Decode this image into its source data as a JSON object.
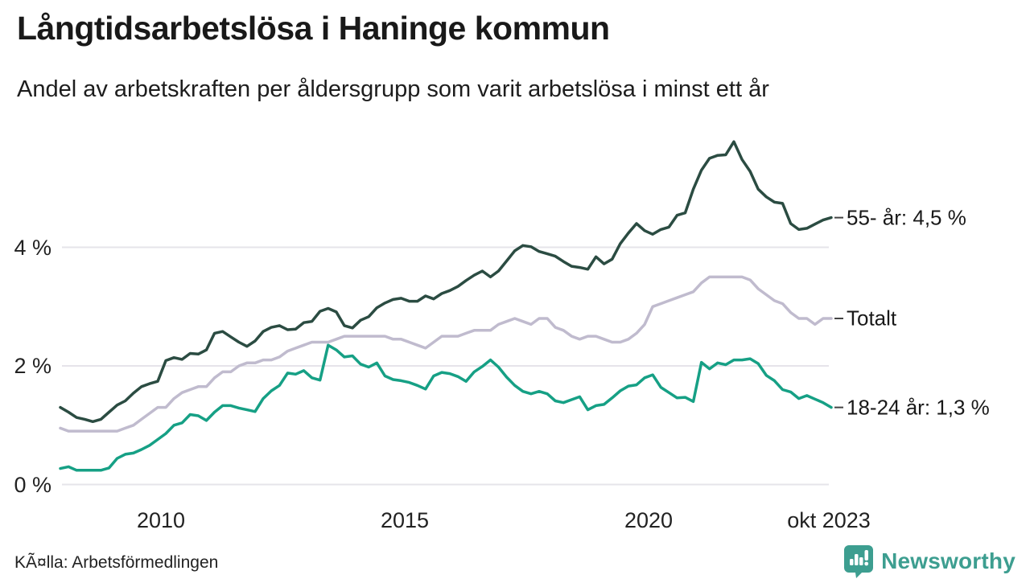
{
  "header": {
    "title": "Långtidsarbetslösa i Haninge kommun",
    "subtitle": "Andel av arbetskraften per åldersgrupp som varit arbetslösa i minst ett år"
  },
  "footer": {
    "source": "KÃ¤lla: Arbetsförmedlingen",
    "brand": "Newsworthy"
  },
  "colors": {
    "series_55": "#2b4c42",
    "series_total": "#c0bbce",
    "series_18_24": "#16a085",
    "gridline": "#e6e4ea",
    "tick_dash": "#444444",
    "text": "#191919",
    "logo_teal": "#3d9e90"
  },
  "chart_data": {
    "type": "line",
    "title": "Långtidsarbetslösa i Haninge kommun",
    "subtitle": "Andel av arbetskraften per åldersgrupp som varit arbetslösa i minst ett år",
    "unit": "% av arbetskraften",
    "x_range": [
      "jan 2008",
      "okt 2023"
    ],
    "ylim": [
      0,
      6
    ],
    "grid_values": [
      0,
      2,
      4
    ],
    "y_tick_labels": [
      "0 %",
      "2 %",
      "4 %"
    ],
    "x_tick_labels": [
      "2010",
      "2015",
      "2020",
      "okt 2023"
    ],
    "legend_position": "right-end-labels",
    "grid": "horizontal-only",
    "series": [
      {
        "name": "Totalt",
        "end_label": "Totalt",
        "latest_value": 2.8,
        "color": "#c0bbce",
        "values": [
          0.95,
          0.9,
          0.9,
          0.9,
          0.9,
          0.9,
          0.9,
          0.9,
          0.95,
          1.0,
          1.1,
          1.2,
          1.3,
          1.3,
          1.45,
          1.55,
          1.6,
          1.65,
          1.65,
          1.8,
          1.9,
          1.9,
          2.0,
          2.05,
          2.05,
          2.1,
          2.1,
          2.15,
          2.25,
          2.3,
          2.35,
          2.4,
          2.4,
          2.4,
          2.45,
          2.5,
          2.5,
          2.5,
          2.5,
          2.5,
          2.5,
          2.45,
          2.45,
          2.4,
          2.35,
          2.3,
          2.4,
          2.5,
          2.5,
          2.5,
          2.55,
          2.6,
          2.6,
          2.6,
          2.7,
          2.75,
          2.8,
          2.75,
          2.7,
          2.8,
          2.8,
          2.65,
          2.6,
          2.5,
          2.45,
          2.5,
          2.5,
          2.45,
          2.4,
          2.4,
          2.45,
          2.55,
          2.7,
          3.0,
          3.05,
          3.1,
          3.15,
          3.2,
          3.25,
          3.4,
          3.5,
          3.5,
          3.5,
          3.5,
          3.5,
          3.45,
          3.3,
          3.2,
          3.1,
          3.05,
          2.9,
          2.8,
          2.8,
          2.7,
          2.8,
          2.8
        ]
      },
      {
        "name": "18-24 år",
        "end_label": "18-24 år: 1,3 %",
        "latest_value": 1.3,
        "color": "#16a085",
        "values": [
          0.27,
          0.3,
          0.24,
          0.24,
          0.24,
          0.24,
          0.28,
          0.44,
          0.51,
          0.53,
          0.59,
          0.66,
          0.76,
          0.86,
          1.0,
          1.04,
          1.18,
          1.16,
          1.08,
          1.22,
          1.33,
          1.33,
          1.29,
          1.26,
          1.23,
          1.45,
          1.58,
          1.67,
          1.88,
          1.86,
          1.92,
          1.8,
          1.76,
          2.35,
          2.27,
          2.15,
          2.17,
          2.03,
          1.98,
          2.05,
          1.83,
          1.77,
          1.75,
          1.72,
          1.67,
          1.61,
          1.83,
          1.89,
          1.87,
          1.82,
          1.74,
          1.9,
          1.99,
          2.1,
          1.98,
          1.81,
          1.67,
          1.57,
          1.53,
          1.57,
          1.53,
          1.41,
          1.38,
          1.43,
          1.48,
          1.26,
          1.33,
          1.35,
          1.46,
          1.58,
          1.66,
          1.68,
          1.8,
          1.85,
          1.64,
          1.55,
          1.46,
          1.47,
          1.4,
          2.06,
          1.95,
          2.05,
          2.02,
          2.1,
          2.1,
          2.12,
          2.04,
          1.84,
          1.75,
          1.6,
          1.56,
          1.45,
          1.5,
          1.44,
          1.38,
          1.3
        ]
      },
      {
        "name": "55- år",
        "end_label": "55- år: 4,5 %",
        "latest_value": 4.5,
        "color": "#2b4c42",
        "values": [
          1.3,
          1.22,
          1.13,
          1.1,
          1.06,
          1.1,
          1.22,
          1.34,
          1.41,
          1.54,
          1.65,
          1.7,
          1.74,
          2.09,
          2.14,
          2.11,
          2.21,
          2.2,
          2.27,
          2.55,
          2.58,
          2.49,
          2.4,
          2.33,
          2.42,
          2.58,
          2.65,
          2.68,
          2.61,
          2.62,
          2.73,
          2.75,
          2.92,
          2.97,
          2.91,
          2.68,
          2.64,
          2.77,
          2.83,
          2.98,
          3.06,
          3.12,
          3.14,
          3.09,
          3.09,
          3.18,
          3.13,
          3.22,
          3.27,
          3.34,
          3.44,
          3.53,
          3.6,
          3.5,
          3.6,
          3.77,
          3.94,
          4.03,
          4.01,
          3.93,
          3.89,
          3.85,
          3.76,
          3.68,
          3.66,
          3.63,
          3.84,
          3.72,
          3.8,
          4.06,
          4.24,
          4.4,
          4.28,
          4.22,
          4.3,
          4.34,
          4.54,
          4.58,
          4.98,
          5.3,
          5.5,
          5.55,
          5.56,
          5.78,
          5.48,
          5.28,
          4.98,
          4.85,
          4.76,
          4.74,
          4.4,
          4.3,
          4.32,
          4.39,
          4.46,
          4.5
        ]
      }
    ]
  }
}
